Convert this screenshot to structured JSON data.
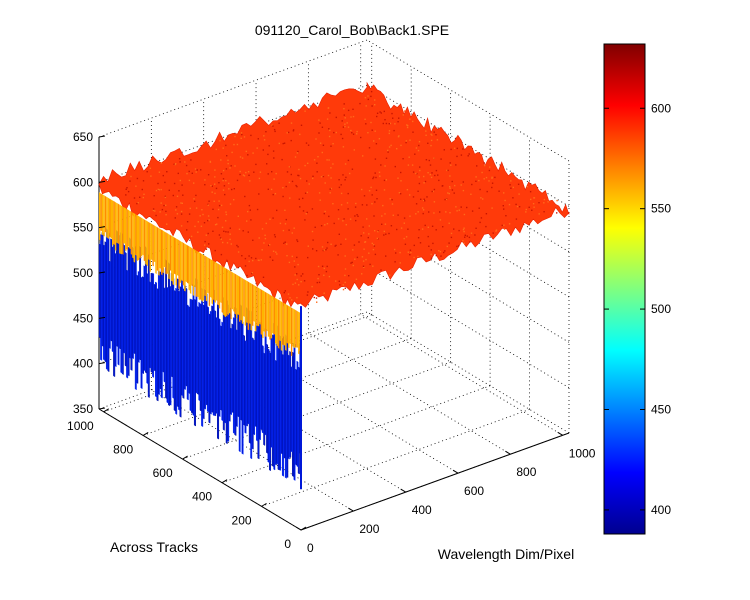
{
  "chart_data": {
    "type": "surface",
    "title": "091120_Carol_Bob\\Back1.SPE",
    "xlabel": "Wavelength Dim/Pixel",
    "ylabel": "Across Tracks",
    "zlabel": "",
    "x_ticks": [
      "0",
      "200",
      "400",
      "600",
      "800",
      "1000"
    ],
    "y_ticks": [
      "0",
      "200",
      "400",
      "600",
      "800",
      "1000"
    ],
    "z_ticks": [
      "350",
      "400",
      "450",
      "500",
      "550",
      "600",
      "650"
    ],
    "xlim": [
      0,
      1024
    ],
    "ylim": [
      0,
      1024
    ],
    "zlim": [
      350,
      650
    ],
    "colorbar": {
      "colormap": "jet",
      "range": [
        388,
        632
      ],
      "ticks": [
        "400",
        "450",
        "500",
        "550",
        "600"
      ]
    },
    "surface": {
      "plateau_level": 597,
      "noise_amplitude": 8,
      "edge_band_level": 565,
      "near_wall_low": 395,
      "near_wall_high": 560
    },
    "grid": true,
    "colors": {
      "plateau": "#ff3a0a",
      "edge_band": "#ffb400",
      "wall": "#0018d8"
    }
  }
}
